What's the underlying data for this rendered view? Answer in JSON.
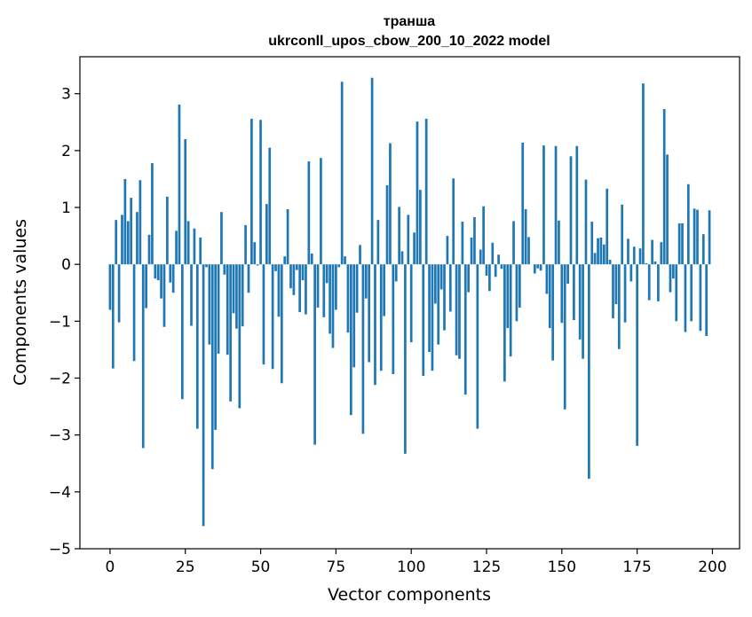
{
  "chart_data": {
    "type": "bar",
    "title": "транша",
    "subtitle": "ukrconll_upos_cbow_200_10_2022 model",
    "xlabel": "Vector components",
    "ylabel": "Components values",
    "xlim": [
      -10,
      209
    ],
    "ylim": [
      -5,
      3.65
    ],
    "xticks": [
      0,
      25,
      50,
      75,
      100,
      125,
      150,
      175,
      200
    ],
    "xtick_labels": [
      "0",
      "25",
      "50",
      "75",
      "100",
      "125",
      "150",
      "175",
      "200"
    ],
    "yticks": [
      -5,
      -4,
      -3,
      -2,
      -1,
      0,
      1,
      2,
      3
    ],
    "ytick_labels": [
      "−5",
      "−4",
      "−3",
      "−2",
      "−1",
      "0",
      "1",
      "2",
      "3"
    ],
    "grid": false,
    "bar_color": "#1f77b4",
    "x": [
      0,
      1,
      2,
      3,
      4,
      5,
      6,
      7,
      8,
      9,
      10,
      11,
      12,
      13,
      14,
      15,
      16,
      17,
      18,
      19,
      20,
      21,
      22,
      23,
      24,
      25,
      26,
      27,
      28,
      29,
      30,
      31,
      32,
      33,
      34,
      35,
      36,
      37,
      38,
      39,
      40,
      41,
      42,
      43,
      44,
      45,
      46,
      47,
      48,
      49,
      50,
      51,
      52,
      53,
      54,
      55,
      56,
      57,
      58,
      59,
      60,
      61,
      62,
      63,
      64,
      65,
      66,
      67,
      68,
      69,
      70,
      71,
      72,
      73,
      74,
      75,
      76,
      77,
      78,
      79,
      80,
      81,
      82,
      83,
      84,
      85,
      86,
      87,
      88,
      89,
      90,
      91,
      92,
      93,
      94,
      95,
      96,
      97,
      98,
      99,
      100,
      101,
      102,
      103,
      104,
      105,
      106,
      107,
      108,
      109,
      110,
      111,
      112,
      113,
      114,
      115,
      116,
      117,
      118,
      119,
      120,
      121,
      122,
      123,
      124,
      125,
      126,
      127,
      128,
      129,
      130,
      131,
      132,
      133,
      134,
      135,
      136,
      137,
      138,
      139,
      140,
      141,
      142,
      143,
      144,
      145,
      146,
      147,
      148,
      149,
      150,
      151,
      152,
      153,
      154,
      155,
      156,
      157,
      158,
      159,
      160,
      161,
      162,
      163,
      164,
      165,
      166,
      167,
      168,
      169,
      170,
      171,
      172,
      173,
      174,
      175,
      176,
      177,
      178,
      179,
      180,
      181,
      182,
      183,
      184,
      185,
      186,
      187,
      188,
      189,
      190,
      191,
      192,
      193,
      194,
      195,
      196,
      197,
      198,
      199
    ],
    "values": [
      -0.8,
      -1.83,
      0.78,
      -1.02,
      0.87,
      1.5,
      0.76,
      1.17,
      -1.7,
      0.92,
      1.48,
      -3.23,
      -0.77,
      0.52,
      1.78,
      -0.25,
      -0.28,
      -0.6,
      -1.1,
      1.19,
      -0.32,
      -0.5,
      0.59,
      2.81,
      -2.37,
      2.2,
      0.76,
      -1.08,
      0.63,
      -2.89,
      0.47,
      -4.6,
      -0.05,
      -1.41,
      -3.6,
      -2.91,
      -1.57,
      0.92,
      -0.18,
      -1.59,
      -2.41,
      -0.86,
      -1.13,
      -2.53,
      -1.09,
      0.69,
      -0.5,
      2.56,
      0.39,
      -0.02,
      2.54,
      -1.76,
      1.06,
      2.05,
      -1.84,
      -0.12,
      -0.92,
      -2.09,
      0.14,
      0.97,
      -0.42,
      -0.54,
      -0.1,
      -0.84,
      -0.28,
      -0.88,
      1.81,
      0.19,
      -3.17,
      -0.76,
      1.87,
      -0.93,
      -0.33,
      -1.22,
      -1.47,
      -0.8,
      -0.05,
      3.21,
      0.14,
      -1.2,
      -2.65,
      -1.81,
      -0.85,
      0.34,
      -2.98,
      -0.6,
      -1.72,
      3.28,
      -2.12,
      0.78,
      -1.87,
      -0.91,
      1.39,
      2.13,
      -1.93,
      -0.3,
      1.01,
      0.23,
      -3.33,
      0.87,
      -1.37,
      0.56,
      2.51,
      1.31,
      -1.96,
      2.56,
      -1.54,
      -1.87,
      -0.69,
      -1.41,
      -0.44,
      -1.16,
      0.5,
      -0.83,
      1.51,
      -1.6,
      -1.66,
      0.75,
      -2.29,
      -0.49,
      0.47,
      0.83,
      -2.89,
      0.26,
      1.02,
      -0.2,
      -0.47,
      0.38,
      -0.22,
      0.17,
      -0.08,
      -2.06,
      -1.12,
      -1.62,
      0.76,
      -1.0,
      -0.76,
      2.14,
      0.97,
      0.48,
      0.0,
      -0.16,
      -0.07,
      -0.11,
      2.09,
      -0.52,
      -1.12,
      -1.69,
      2.08,
      0.77,
      -1.03,
      -2.55,
      -0.34,
      1.9,
      -0.98,
      2.08,
      -1.32,
      -1.66,
      1.49,
      -3.77,
      0.75,
      0.2,
      0.46,
      0.47,
      0.35,
      1.33,
      0.08,
      -0.95,
      -0.7,
      -1.49,
      1.05,
      -1.02,
      0.45,
      -0.3,
      0.31,
      -3.19,
      0.28,
      3.18,
      0.02,
      -0.63,
      0.43,
      0.05,
      -0.65,
      0.39,
      2.73,
      1.93,
      -0.49,
      -0.25,
      -1.0,
      0.72,
      0.72,
      -1.19,
      1.41,
      -1.0,
      0.98,
      0.96,
      -1.17,
      0.53,
      -1.26,
      0.95
    ]
  }
}
